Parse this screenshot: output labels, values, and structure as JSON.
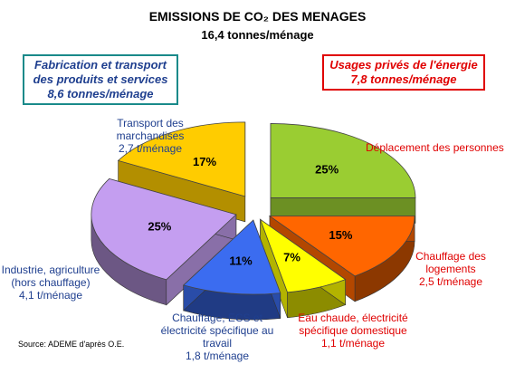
{
  "chart_data": {
    "type": "pie",
    "title": "EMISSIONS DE CO₂ DES MENAGES",
    "subtitle": "16,4 tonnes/ménage",
    "groups": [
      {
        "label_lines": [
          "Fabrication et transport",
          "des produits et services",
          "8,6 tonnes/ménage"
        ],
        "color": "#1a8a8a"
      },
      {
        "label_lines": [
          "Usages privés de l'énergie",
          "7,8 tonnes/ménage"
        ],
        "color": "#e00000"
      }
    ],
    "slices": [
      {
        "pct_label": "25%",
        "value": 25,
        "color": "#9acd32",
        "label_lines": [
          "Déplacement des personnes"
        ]
      },
      {
        "pct_label": "15%",
        "value": 15,
        "color": "#ff6600",
        "label_lines": [
          "Chauffage des",
          "logements",
          "2,5 t/ménage"
        ]
      },
      {
        "pct_label": "7%",
        "value": 7,
        "color": "#ffff00",
        "label_lines": [
          "Eau chaude, électricité",
          "spécifique domestique",
          "1,1 t/ménage"
        ]
      },
      {
        "pct_label": "11%",
        "value": 11,
        "color": "#3b6cf0",
        "label_lines": [
          "Chauffage, ECS et",
          "électricité spécifique au",
          "travail",
          "1,8 t/ménage"
        ]
      },
      {
        "pct_label": "25%",
        "value": 25,
        "color": "#c49ef0",
        "label_lines": [
          "Industrie, agriculture",
          "(hors chauffage)",
          "4,1 t/ménage"
        ]
      },
      {
        "pct_label": "17%",
        "value": 17,
        "color": "#ffcc00",
        "label_lines": [
          "Transport des",
          "marchandises",
          "2,7 t/ménage"
        ]
      }
    ],
    "source": "Source: ADEME d'après O.E."
  }
}
